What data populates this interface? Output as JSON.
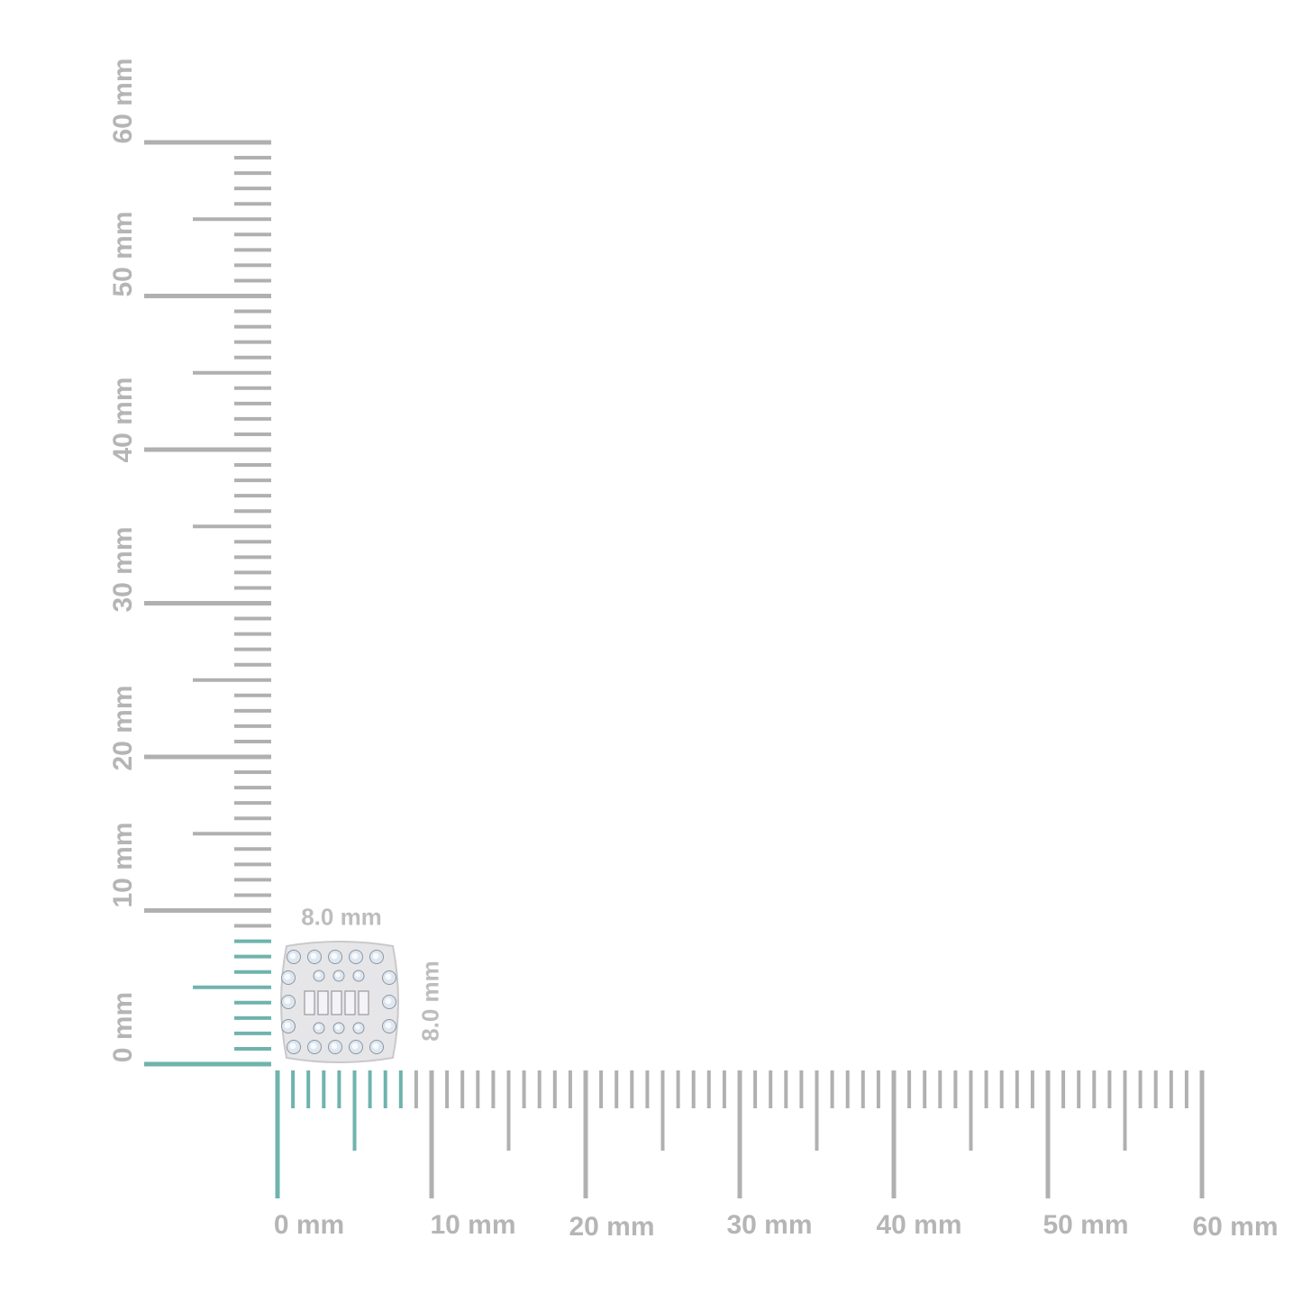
{
  "ruler": {
    "unit": "mm",
    "range": [
      0,
      60
    ],
    "minor_step_mm": 1,
    "highlight_range_mm": [
      0,
      8
    ],
    "colors": {
      "ticks": "#b0b0b0",
      "highlight": "#6fb3ad",
      "labels": "#b5b5b5"
    },
    "horizontal_labels": [
      "0 mm",
      "10 mm",
      "20 mm",
      "30 mm",
      "40 mm",
      "50 mm",
      "60 mm"
    ],
    "vertical_labels": [
      "0 mm",
      "10 mm",
      "20 mm",
      "30 mm",
      "40 mm",
      "50 mm",
      "60 mm"
    ]
  },
  "product": {
    "width_label": "8.0 mm",
    "height_label": "8.0 mm",
    "width_mm": 8.0,
    "height_mm": 8.0,
    "image": "cushion-halo-baguette-diamond-earring"
  }
}
